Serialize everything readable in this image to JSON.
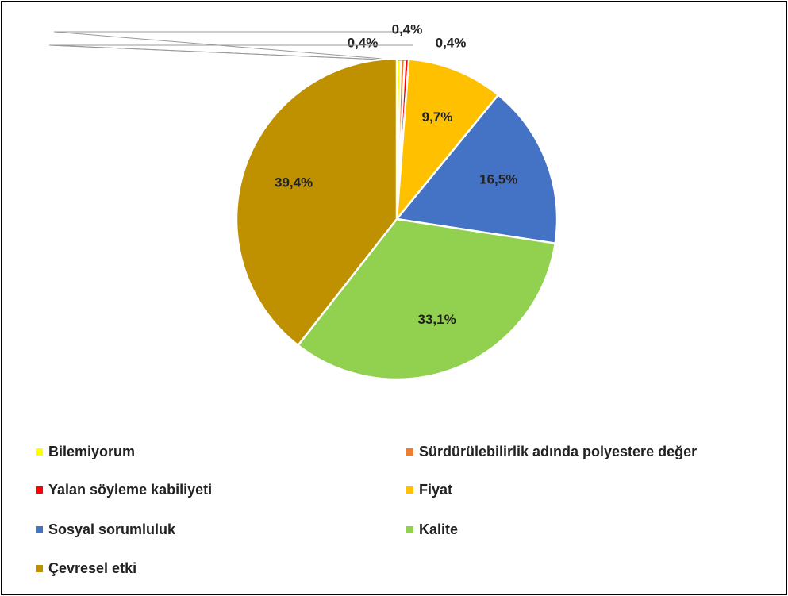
{
  "chart_data": {
    "type": "pie",
    "categories": [
      "Bilemiyorum",
      "Sürdürülebilirlik adında polyestere değer",
      "Yalan söyleme kabiliyeti",
      "Fiyat",
      "Sosyal sorumluluk",
      "Kalite",
      "Çevresel etki"
    ],
    "values": [
      0.4,
      0.4,
      0.4,
      9.7,
      16.5,
      33.1,
      39.4
    ],
    "value_labels": [
      "0,4%",
      "0,4%",
      "0,4%",
      "9,7%",
      "16,5%",
      "33,1%",
      "39,4%"
    ],
    "colors": [
      "#ffff00",
      "#ed7d31",
      "#ff0000",
      "#ffc000",
      "#4472c4",
      "#92d050",
      "#bf9000"
    ],
    "legend": "bottom"
  }
}
